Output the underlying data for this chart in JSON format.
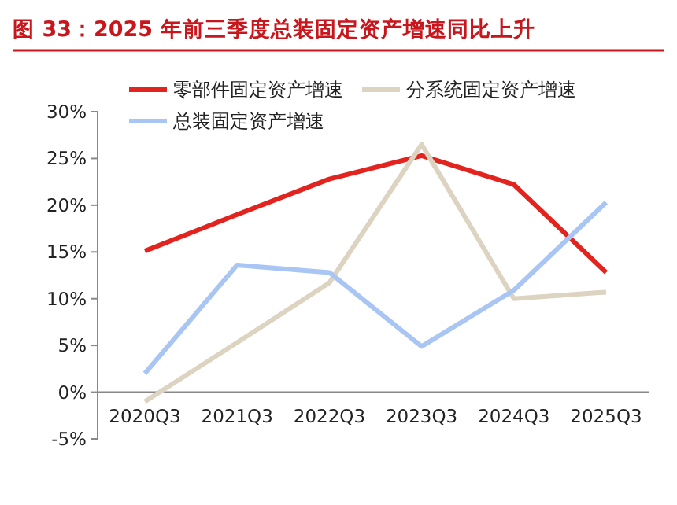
{
  "chart_data": {
    "type": "line",
    "title": "图 33：2025 年前三季度总装固定资产增速同比上升",
    "categories": [
      "2020Q3",
      "2021Q3",
      "2022Q3",
      "2023Q3",
      "2024Q3",
      "2025Q3"
    ],
    "series": [
      {
        "name": "零部件固定资产增速",
        "color": "#e3231e",
        "values": [
          15.1,
          19.0,
          22.8,
          25.3,
          22.2,
          12.8
        ]
      },
      {
        "name": "分系统固定资产增速",
        "color": "#dcd3c1",
        "values": [
          -1.0,
          5.3,
          11.7,
          26.5,
          10.0,
          10.7
        ]
      },
      {
        "name": "总装固定资产增速",
        "color": "#a8c5f4",
        "values": [
          2.0,
          13.6,
          12.8,
          4.9,
          10.9,
          20.3
        ]
      }
    ],
    "ylim": [
      -5,
      30
    ],
    "yticks": [
      {
        "value": -5,
        "label": "-5%"
      },
      {
        "value": 0,
        "label": "0%"
      },
      {
        "value": 5,
        "label": "5%"
      },
      {
        "value": 10,
        "label": "10%"
      },
      {
        "value": 15,
        "label": "15%"
      },
      {
        "value": 20,
        "label": "20%"
      },
      {
        "value": 25,
        "label": "25%"
      },
      {
        "value": 30,
        "label": "30%"
      }
    ],
    "grid": false,
    "legend": "top",
    "marker": "none",
    "line_style": "solid"
  }
}
